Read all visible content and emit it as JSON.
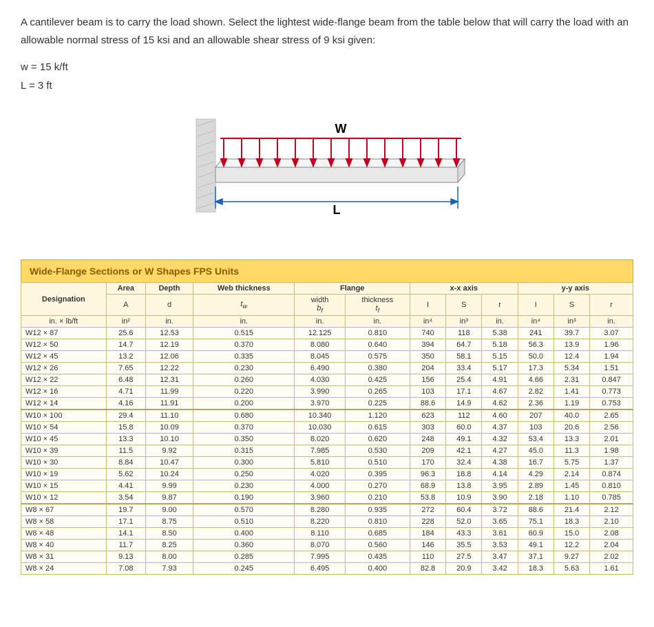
{
  "problem": {
    "para": "A cantilever beam is to carry the load shown. Select the lightest wide-flange beam from the table below that will carry the load with an allowable normal stress of 15 ksi and an allowable shear stress of 9 ksi given:",
    "w": "w = 15 k/ft",
    "L": "L = 3 ft"
  },
  "diagram": {
    "W_label": "W",
    "L_label": "L",
    "colors": {
      "wall": "#d9d9d9",
      "wall_stroke": "#bdbdbd",
      "beam_top": "#f5f5f5",
      "beam_side": "#e8e8e8",
      "beam_stroke": "#888",
      "arrow": "#c00020",
      "dim": "#1560bd"
    }
  },
  "table": {
    "title": "Wide-Flange Sections or W Shapes  FPS Units",
    "headers": {
      "designation": "Designation",
      "area": "Area",
      "depth": "Depth",
      "web_thickness": "Web thickness",
      "flange": "Flange",
      "flange_width": "width",
      "flange_thickness": "thickness",
      "xx": "x-x axis",
      "yy": "y-y axis",
      "A": "A",
      "d": "d",
      "tw": "t_w",
      "bf": "b_f",
      "tf": "t_f",
      "I": "I",
      "S": "S",
      "r": "r"
    },
    "units": {
      "designation": "in. × lb/ft",
      "area": "in²",
      "depth": "in.",
      "tw": "in.",
      "bf": "in.",
      "tf": "in.",
      "Ix": "in⁴",
      "Sx": "in³",
      "rx": "in.",
      "Iy": "in⁴",
      "Sy": "in³",
      "ry": "in."
    },
    "rows": [
      {
        "g": 1,
        "d": "W12 × 87",
        "A": "25.6",
        "dp": "12.53",
        "tw": "0.515",
        "bf": "12.125",
        "tf": "0.810",
        "Ix": "740",
        "Sx": "118",
        "rx": "5.38",
        "Iy": "241",
        "Sy": "39.7",
        "ry": "3.07"
      },
      {
        "g": 1,
        "d": "W12 × 50",
        "A": "14.7",
        "dp": "12.19",
        "tw": "0.370",
        "bf": "8.080",
        "tf": "0.640",
        "Ix": "394",
        "Sx": "64.7",
        "rx": "5.18",
        "Iy": "56.3",
        "Sy": "13.9",
        "ry": "1.96"
      },
      {
        "g": 1,
        "d": "W12 × 45",
        "A": "13.2",
        "dp": "12.06",
        "tw": "0.335",
        "bf": "8.045",
        "tf": "0.575",
        "Ix": "350",
        "Sx": "58.1",
        "rx": "5.15",
        "Iy": "50.0",
        "Sy": "12.4",
        "ry": "1.94"
      },
      {
        "g": 1,
        "d": "W12 × 26",
        "A": "7.65",
        "dp": "12.22",
        "tw": "0.230",
        "bf": "6.490",
        "tf": "0.380",
        "Ix": "204",
        "Sx": "33.4",
        "rx": "5.17",
        "Iy": "17.3",
        "Sy": "5.34",
        "ry": "1.51"
      },
      {
        "g": 1,
        "d": "W12 × 22",
        "A": "6.48",
        "dp": "12.31",
        "tw": "0.260",
        "bf": "4.030",
        "tf": "0.425",
        "Ix": "156",
        "Sx": "25.4",
        "rx": "4.91",
        "Iy": "4.66",
        "Sy": "2.31",
        "ry": "0.847"
      },
      {
        "g": 1,
        "d": "W12 × 16",
        "A": "4.71",
        "dp": "11.99",
        "tw": "0.220",
        "bf": "3.990",
        "tf": "0.265",
        "Ix": "103",
        "Sx": "17.1",
        "rx": "4.67",
        "Iy": "2.82",
        "Sy": "1.41",
        "ry": "0.773"
      },
      {
        "g": 1,
        "d": "W12 × 14",
        "A": "4.16",
        "dp": "11.91",
        "tw": "0.200",
        "bf": "3.970",
        "tf": "0.225",
        "Ix": "88.6",
        "Sx": "14.9",
        "rx": "4.62",
        "Iy": "2.36",
        "Sy": "1.19",
        "ry": "0.753"
      },
      {
        "g": 2,
        "d": "W10 × 100",
        "A": "29.4",
        "dp": "11.10",
        "tw": "0.680",
        "bf": "10.340",
        "tf": "1.120",
        "Ix": "623",
        "Sx": "112",
        "rx": "4.60",
        "Iy": "207",
        "Sy": "40.0",
        "ry": "2.65"
      },
      {
        "g": 2,
        "d": "W10 × 54",
        "A": "15.8",
        "dp": "10.09",
        "tw": "0.370",
        "bf": "10.030",
        "tf": "0.615",
        "Ix": "303",
        "Sx": "60.0",
        "rx": "4.37",
        "Iy": "103",
        "Sy": "20.6",
        "ry": "2.56"
      },
      {
        "g": 2,
        "d": "W10 × 45",
        "A": "13.3",
        "dp": "10.10",
        "tw": "0.350",
        "bf": "8.020",
        "tf": "0.620",
        "Ix": "248",
        "Sx": "49.1",
        "rx": "4.32",
        "Iy": "53.4",
        "Sy": "13.3",
        "ry": "2.01"
      },
      {
        "g": 2,
        "d": "W10 × 39",
        "A": "11.5",
        "dp": "9.92",
        "tw": "0.315",
        "bf": "7.985",
        "tf": "0.530",
        "Ix": "209",
        "Sx": "42.1",
        "rx": "4.27",
        "Iy": "45.0",
        "Sy": "11.3",
        "ry": "1.98"
      },
      {
        "g": 2,
        "d": "W10 × 30",
        "A": "8.84",
        "dp": "10.47",
        "tw": "0.300",
        "bf": "5.810",
        "tf": "0.510",
        "Ix": "170",
        "Sx": "32.4",
        "rx": "4.38",
        "Iy": "16.7",
        "Sy": "5.75",
        "ry": "1.37"
      },
      {
        "g": 2,
        "d": "W10 × 19",
        "A": "5.62",
        "dp": "10.24",
        "tw": "0.250",
        "bf": "4.020",
        "tf": "0.395",
        "Ix": "96.3",
        "Sx": "18.8",
        "rx": "4.14",
        "Iy": "4.29",
        "Sy": "2.14",
        "ry": "0.874"
      },
      {
        "g": 2,
        "d": "W10 × 15",
        "A": "4.41",
        "dp": "9.99",
        "tw": "0.230",
        "bf": "4.000",
        "tf": "0.270",
        "Ix": "68.9",
        "Sx": "13.8",
        "rx": "3.95",
        "Iy": "2.89",
        "Sy": "1.45",
        "ry": "0.810"
      },
      {
        "g": 2,
        "d": "W10 × 12",
        "A": "3.54",
        "dp": "9.87",
        "tw": "0.190",
        "bf": "3.960",
        "tf": "0.210",
        "Ix": "53.8",
        "Sx": "10.9",
        "rx": "3.90",
        "Iy": "2.18",
        "Sy": "1.10",
        "ry": "0.785"
      },
      {
        "g": 3,
        "d": "W8 × 67",
        "A": "19.7",
        "dp": "9.00",
        "tw": "0.570",
        "bf": "8.280",
        "tf": "0.935",
        "Ix": "272",
        "Sx": "60.4",
        "rx": "3.72",
        "Iy": "88.6",
        "Sy": "21.4",
        "ry": "2.12"
      },
      {
        "g": 3,
        "d": "W8 × 58",
        "A": "17.1",
        "dp": "8.75",
        "tw": "0.510",
        "bf": "8.220",
        "tf": "0.810",
        "Ix": "228",
        "Sx": "52.0",
        "rx": "3.65",
        "Iy": "75.1",
        "Sy": "18.3",
        "ry": "2.10"
      },
      {
        "g": 3,
        "d": "W8 × 48",
        "A": "14.1",
        "dp": "8.50",
        "tw": "0.400",
        "bf": "8.110",
        "tf": "0.685",
        "Ix": "184",
        "Sx": "43.3",
        "rx": "3.61",
        "Iy": "60.9",
        "Sy": "15.0",
        "ry": "2.08"
      },
      {
        "g": 3,
        "d": "W8 × 40",
        "A": "11.7",
        "dp": "8.25",
        "tw": "0.360",
        "bf": "8.070",
        "tf": "0.560",
        "Ix": "146",
        "Sx": "35.5",
        "rx": "3.53",
        "Iy": "49.1",
        "Sy": "12.2",
        "ry": "2.04"
      },
      {
        "g": 3,
        "d": "W8 × 31",
        "A": "9.13",
        "dp": "8.00",
        "tw": "0.285",
        "bf": "7.995",
        "tf": "0.435",
        "Ix": "110",
        "Sx": "27.5",
        "rx": "3.47",
        "Iy": "37.1",
        "Sy": "9.27",
        "ry": "2.02"
      },
      {
        "g": 3,
        "d": "W8 × 24",
        "A": "7.08",
        "dp": "7.93",
        "tw": "0.245",
        "bf": "6.495",
        "tf": "0.400",
        "Ix": "82.8",
        "Sx": "20.9",
        "rx": "3.42",
        "Iy": "18.3",
        "Sy": "5.63",
        "ry": "1.61"
      }
    ]
  }
}
